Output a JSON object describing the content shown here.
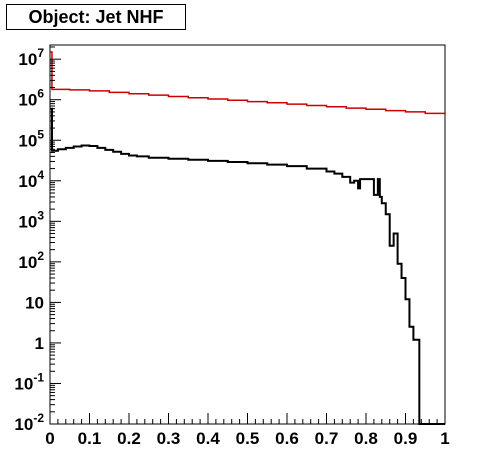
{
  "chart_data": {
    "type": "line",
    "title": "Object: Jet NHF",
    "xlim": [
      0,
      1
    ],
    "ylim_log10": [
      -2,
      7.35
    ],
    "y_scale": "log",
    "grid": false,
    "legend": "none",
    "x_ticks": [
      {
        "value": 0,
        "label": "0"
      },
      {
        "value": 0.1,
        "label": "0.1"
      },
      {
        "value": 0.2,
        "label": "0.2"
      },
      {
        "value": 0.3,
        "label": "0.3"
      },
      {
        "value": 0.4,
        "label": "0.4"
      },
      {
        "value": 0.5,
        "label": "0.5"
      },
      {
        "value": 0.6,
        "label": "0.6"
      },
      {
        "value": 0.7,
        "label": "0.7"
      },
      {
        "value": 0.8,
        "label": "0.8"
      },
      {
        "value": 0.9,
        "label": "0.9"
      },
      {
        "value": 1,
        "label": "1"
      }
    ],
    "y_ticks": [
      {
        "log": -2,
        "base": "10",
        "exp": "-2"
      },
      {
        "log": -1,
        "base": "10",
        "exp": "-1"
      },
      {
        "log": 0,
        "base": "1",
        "exp": ""
      },
      {
        "log": 1,
        "base": "10",
        "exp": ""
      },
      {
        "log": 2,
        "base": "10",
        "exp": "2"
      },
      {
        "log": 3,
        "base": "10",
        "exp": "3"
      },
      {
        "log": 4,
        "base": "10",
        "exp": "4"
      },
      {
        "log": 5,
        "base": "10",
        "exp": "5"
      },
      {
        "log": 6,
        "base": "10",
        "exp": "6"
      },
      {
        "log": 7,
        "base": "10",
        "exp": "7"
      }
    ],
    "series": [
      {
        "color": "#000000",
        "style": "step",
        "points": [
          [
            0.0,
            600000
          ],
          [
            0.005,
            55000
          ],
          [
            0.02,
            60000
          ],
          [
            0.04,
            65000
          ],
          [
            0.06,
            70000
          ],
          [
            0.08,
            74000
          ],
          [
            0.1,
            72000
          ],
          [
            0.12,
            65000
          ],
          [
            0.14,
            58000
          ],
          [
            0.16,
            52000
          ],
          [
            0.18,
            46000
          ],
          [
            0.2,
            42000
          ],
          [
            0.22,
            40000
          ],
          [
            0.25,
            37000
          ],
          [
            0.3,
            35000
          ],
          [
            0.35,
            33000
          ],
          [
            0.4,
            31000
          ],
          [
            0.45,
            29000
          ],
          [
            0.5,
            27000
          ],
          [
            0.55,
            25000
          ],
          [
            0.6,
            23000
          ],
          [
            0.65,
            20000
          ],
          [
            0.7,
            17000
          ],
          [
            0.72,
            15000
          ],
          [
            0.74,
            12500
          ],
          [
            0.76,
            9000
          ],
          [
            0.77,
            10000
          ],
          [
            0.78,
            6500
          ],
          [
            0.785,
            11000
          ],
          [
            0.8,
            11000
          ],
          [
            0.82,
            4500
          ],
          [
            0.83,
            11000
          ],
          [
            0.835,
            4000
          ],
          [
            0.84,
            2800
          ],
          [
            0.85,
            1500
          ],
          [
            0.86,
            250
          ],
          [
            0.87,
            500
          ],
          [
            0.875,
            500
          ],
          [
            0.88,
            90
          ],
          [
            0.89,
            40
          ],
          [
            0.9,
            12
          ],
          [
            0.91,
            2.5
          ],
          [
            0.92,
            1.2
          ],
          [
            0.935,
            0.006
          ],
          [
            1.0,
            0.006
          ]
        ]
      },
      {
        "color": "#cc0000",
        "style": "step",
        "points": [
          [
            0.0,
            15000000
          ],
          [
            0.005,
            1800000
          ],
          [
            0.05,
            1750000
          ],
          [
            0.1,
            1650000
          ],
          [
            0.15,
            1520000
          ],
          [
            0.2,
            1400000
          ],
          [
            0.25,
            1300000
          ],
          [
            0.3,
            1200000
          ],
          [
            0.35,
            1120000
          ],
          [
            0.4,
            1040000
          ],
          [
            0.45,
            970000
          ],
          [
            0.5,
            900000
          ],
          [
            0.55,
            840000
          ],
          [
            0.6,
            780000
          ],
          [
            0.65,
            720000
          ],
          [
            0.7,
            670000
          ],
          [
            0.75,
            620000
          ],
          [
            0.8,
            580000
          ],
          [
            0.85,
            540000
          ],
          [
            0.9,
            500000
          ],
          [
            0.95,
            460000
          ],
          [
            1.0,
            430000
          ]
        ]
      }
    ]
  }
}
